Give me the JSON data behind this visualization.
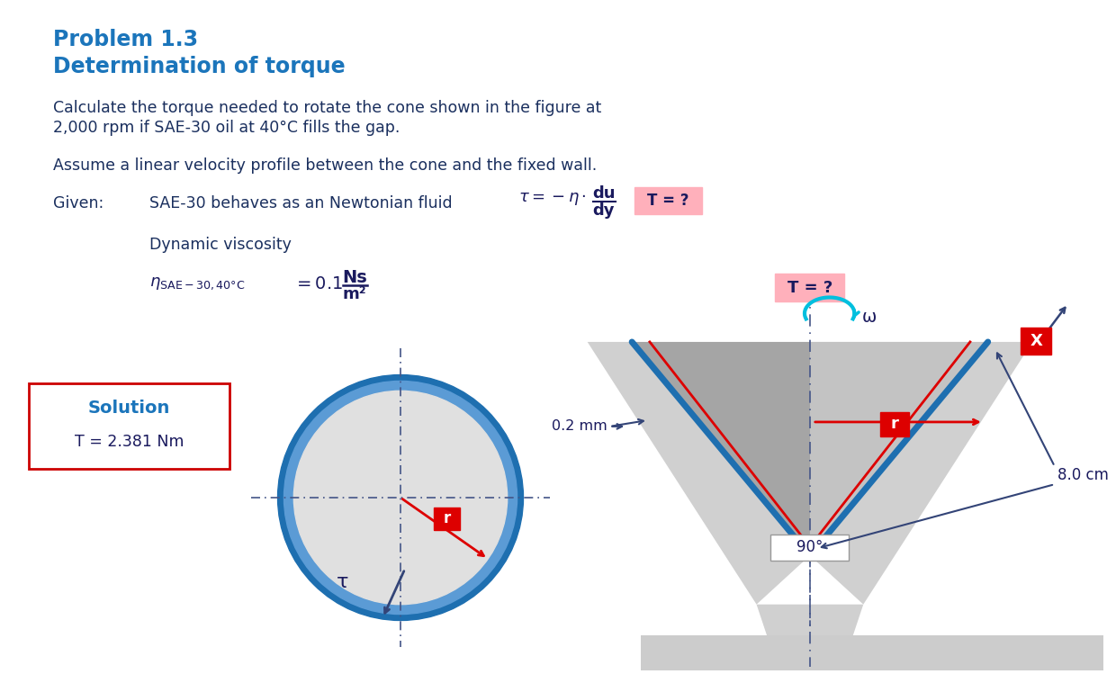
{
  "title1": "Problem 1.3",
  "title2": "Determination of torque",
  "line1": "Calculate the torque needed to rotate the cone shown in the figure at",
  "line2": "2,000 rpm if SAE-30 oil at 40°C fills the gap.",
  "line3": "Assume a linear velocity profile between the cone and the fixed wall.",
  "given_label": "Given:",
  "given_text": "SAE-30 behaves as an Newtonian fluid",
  "T_question": "T = ?",
  "omega_label": "ω",
  "dyn_visc_label": "Dynamic viscosity",
  "solution_label": "Solution",
  "solution_value": "T = 2.381 Nm",
  "gap_label": "0.2 mm",
  "angle_label": "90°",
  "length_label": "8.0 cm",
  "X_label": "X",
  "r_label": "r",
  "tau_label": "τ",
  "bg_color": "#ffffff",
  "title_color": "#1B75BB",
  "text_color": "#1a1a5e",
  "body_text_color": "#1a2f5e",
  "solution_border_color": "#cc0000",
  "solution_text_color": "#1B75BB",
  "cone_border_blue": "#1E6FB0",
  "red_color": "#dd0000",
  "cyan_color": "#00BFDE",
  "gray_light": "#d0d0d0",
  "gray_dark": "#a8a8a8",
  "gray_med": "#b8b8b8"
}
